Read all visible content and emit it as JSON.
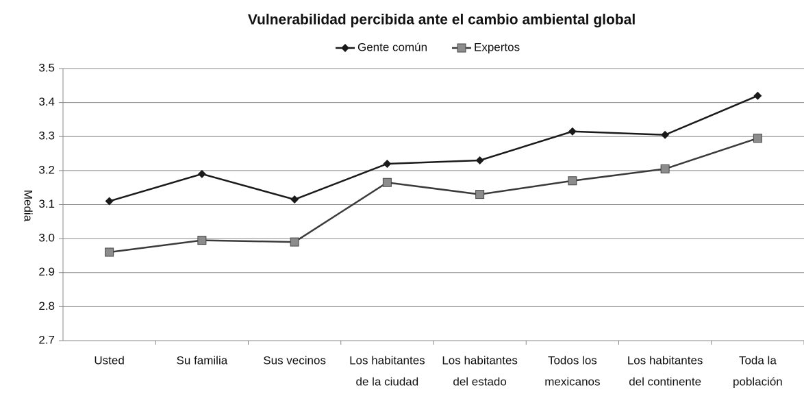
{
  "chart_data": {
    "type": "line",
    "title": "Vulnerabilidad percibida ante el cambio ambiental global",
    "y_label": "Media",
    "categories": [
      [
        "Usted"
      ],
      [
        "Su familia"
      ],
      [
        "Sus vecinos"
      ],
      [
        "Los habitantes",
        "de la ciudad"
      ],
      [
        "Los habitantes",
        "del estado"
      ],
      [
        "Todos los",
        "mexicanos"
      ],
      [
        "Los habitantes",
        "del continente"
      ],
      [
        "Toda la",
        "población"
      ]
    ],
    "series": [
      {
        "name": "Gente común",
        "color": "#1a1a1a",
        "marker": "diamond",
        "values": [
          3.11,
          3.19,
          3.115,
          3.22,
          3.23,
          3.315,
          3.305,
          3.42
        ]
      },
      {
        "name": "Expertos",
        "color": "#3a3a3a",
        "marker": "square",
        "values": [
          2.96,
          2.995,
          2.99,
          3.165,
          3.13,
          3.17,
          3.205,
          3.295
        ]
      }
    ],
    "ylim": [
      2.7,
      3.5
    ],
    "yticks": [
      2.7,
      2.8,
      2.9,
      {
        "value": 3.0,
        "label": "3.0"
      },
      3.1,
      3.2,
      3.3,
      3.4,
      3.5
    ],
    "grid": true,
    "legend": "top"
  }
}
